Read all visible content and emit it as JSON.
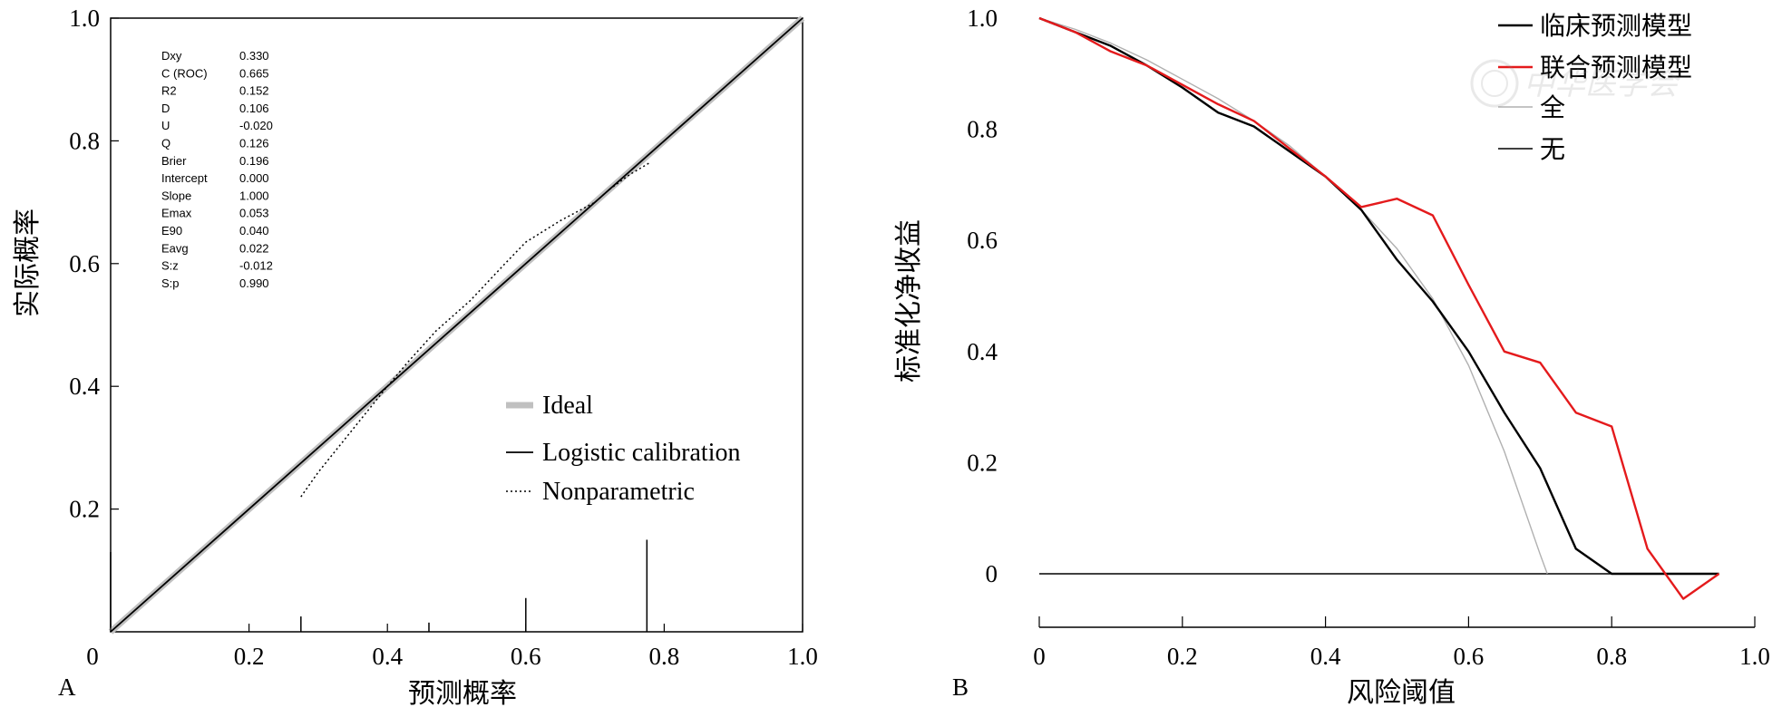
{
  "chart_data": [
    {
      "panel": "A",
      "type": "line",
      "xlabel": "预测概率",
      "ylabel": "实际概率",
      "xlim": [
        0,
        1
      ],
      "ylim": [
        0,
        1
      ],
      "xticks": [
        0,
        0.2,
        0.4,
        0.6,
        0.8,
        1.0
      ],
      "xtick_labels": [
        "0",
        "0.2",
        "0.4",
        "0.6",
        "0.8",
        "1.0"
      ],
      "yticks": [
        0.2,
        0.4,
        0.6,
        0.8,
        1.0
      ],
      "ytick_labels": [
        "0.2",
        "0.4",
        "0.6",
        "0.8",
        "1.0"
      ],
      "grid": false,
      "legend_position": "bottom-right",
      "stats": [
        {
          "name": "Dxy",
          "value": "0.330"
        },
        {
          "name": "C (ROC)",
          "value": "0.665"
        },
        {
          "name": "R2",
          "value": "0.152"
        },
        {
          "name": "D",
          "value": "0.106"
        },
        {
          "name": "U",
          "value": "-0.020"
        },
        {
          "name": "Q",
          "value": "0.126"
        },
        {
          "name": "Brier",
          "value": "0.196"
        },
        {
          "name": "Intercept",
          "value": "0.000"
        },
        {
          "name": "Slope",
          "value": "1.000"
        },
        {
          "name": "Emax",
          "value": "0.053"
        },
        {
          "name": "E90",
          "value": "0.040"
        },
        {
          "name": "Eavg",
          "value": "0.022"
        },
        {
          "name": "S:z",
          "value": "-0.012"
        },
        {
          "name": "S:p",
          "value": "0.990"
        }
      ],
      "series": [
        {
          "name": "Ideal",
          "color": "#c0c0c0",
          "style": "thick",
          "x": [
            0,
            1
          ],
          "y": [
            0,
            1
          ]
        },
        {
          "name": "Logistic calibration",
          "color": "#000000",
          "style": "solid",
          "x": [
            0,
            1
          ],
          "y": [
            0,
            1
          ]
        },
        {
          "name": "Nonparametric",
          "color": "#000000",
          "style": "dotted",
          "x": [
            0.275,
            0.3,
            0.35,
            0.4,
            0.43,
            0.47,
            0.52,
            0.57,
            0.6,
            0.65,
            0.7,
            0.72,
            0.75,
            0.78
          ],
          "y": [
            0.22,
            0.26,
            0.33,
            0.4,
            0.44,
            0.49,
            0.54,
            0.6,
            0.635,
            0.67,
            0.7,
            0.72,
            0.745,
            0.765
          ]
        }
      ],
      "rug": [
        {
          "x": 0.0,
          "h": 0.13
        },
        {
          "x": 0.275,
          "h": 0.025
        },
        {
          "x": 0.46,
          "h": 0.015
        },
        {
          "x": 0.6,
          "h": 0.055
        },
        {
          "x": 0.775,
          "h": 0.15
        }
      ]
    },
    {
      "panel": "B",
      "type": "line",
      "xlabel": "风险阈值",
      "ylabel": "标准化净收益",
      "xlim": [
        0,
        1
      ],
      "ylim": [
        -0.08,
        1
      ],
      "xticks": [
        0,
        0.2,
        0.4,
        0.6,
        0.8,
        1.0
      ],
      "xtick_labels": [
        "0",
        "0.2",
        "0.4",
        "0.6",
        "0.8",
        "1.0"
      ],
      "yticks": [
        0,
        0.2,
        0.4,
        0.6,
        0.8,
        1.0
      ],
      "ytick_labels": [
        "0",
        "0.2",
        "0.4",
        "0.6",
        "0.8",
        "1.0"
      ],
      "grid": false,
      "legend_position": "top-right",
      "series": [
        {
          "name": "临床预测模型",
          "color": "#000000",
          "x": [
            0,
            0.05,
            0.1,
            0.15,
            0.2,
            0.25,
            0.3,
            0.35,
            0.4,
            0.45,
            0.5,
            0.55,
            0.6,
            0.65,
            0.7,
            0.75,
            0.8,
            0.85,
            0.9,
            0.95
          ],
          "y": [
            1.0,
            0.975,
            0.95,
            0.915,
            0.875,
            0.83,
            0.805,
            0.76,
            0.715,
            0.655,
            0.565,
            0.49,
            0.4,
            0.29,
            0.19,
            0.045,
            0.0,
            0.0,
            0.0,
            0.0
          ]
        },
        {
          "name": "联合预测模型",
          "color": "#e41a1c",
          "x": [
            0,
            0.05,
            0.1,
            0.15,
            0.2,
            0.25,
            0.3,
            0.35,
            0.4,
            0.45,
            0.5,
            0.55,
            0.6,
            0.65,
            0.7,
            0.75,
            0.8,
            0.85,
            0.9,
            0.95
          ],
          "y": [
            1.0,
            0.975,
            0.94,
            0.915,
            0.88,
            0.845,
            0.815,
            0.765,
            0.715,
            0.66,
            0.675,
            0.645,
            0.52,
            0.4,
            0.38,
            0.29,
            0.265,
            0.045,
            -0.045,
            0.0
          ]
        },
        {
          "name": "全",
          "color": "#b0b0b0",
          "x": [
            0,
            0.05,
            0.1,
            0.15,
            0.2,
            0.25,
            0.3,
            0.35,
            0.4,
            0.45,
            0.5,
            0.55,
            0.6,
            0.65,
            0.7,
            0.71
          ],
          "y": [
            1.0,
            0.98,
            0.955,
            0.925,
            0.89,
            0.855,
            0.815,
            0.77,
            0.715,
            0.655,
            0.585,
            0.495,
            0.375,
            0.22,
            0.035,
            0.0
          ]
        },
        {
          "name": "无",
          "color": "#000000",
          "x": [
            0,
            0.95
          ],
          "y": [
            0,
            0
          ]
        }
      ]
    }
  ],
  "panel_labels": {
    "a": "A",
    "b": "B"
  },
  "watermark": "中华医学会"
}
